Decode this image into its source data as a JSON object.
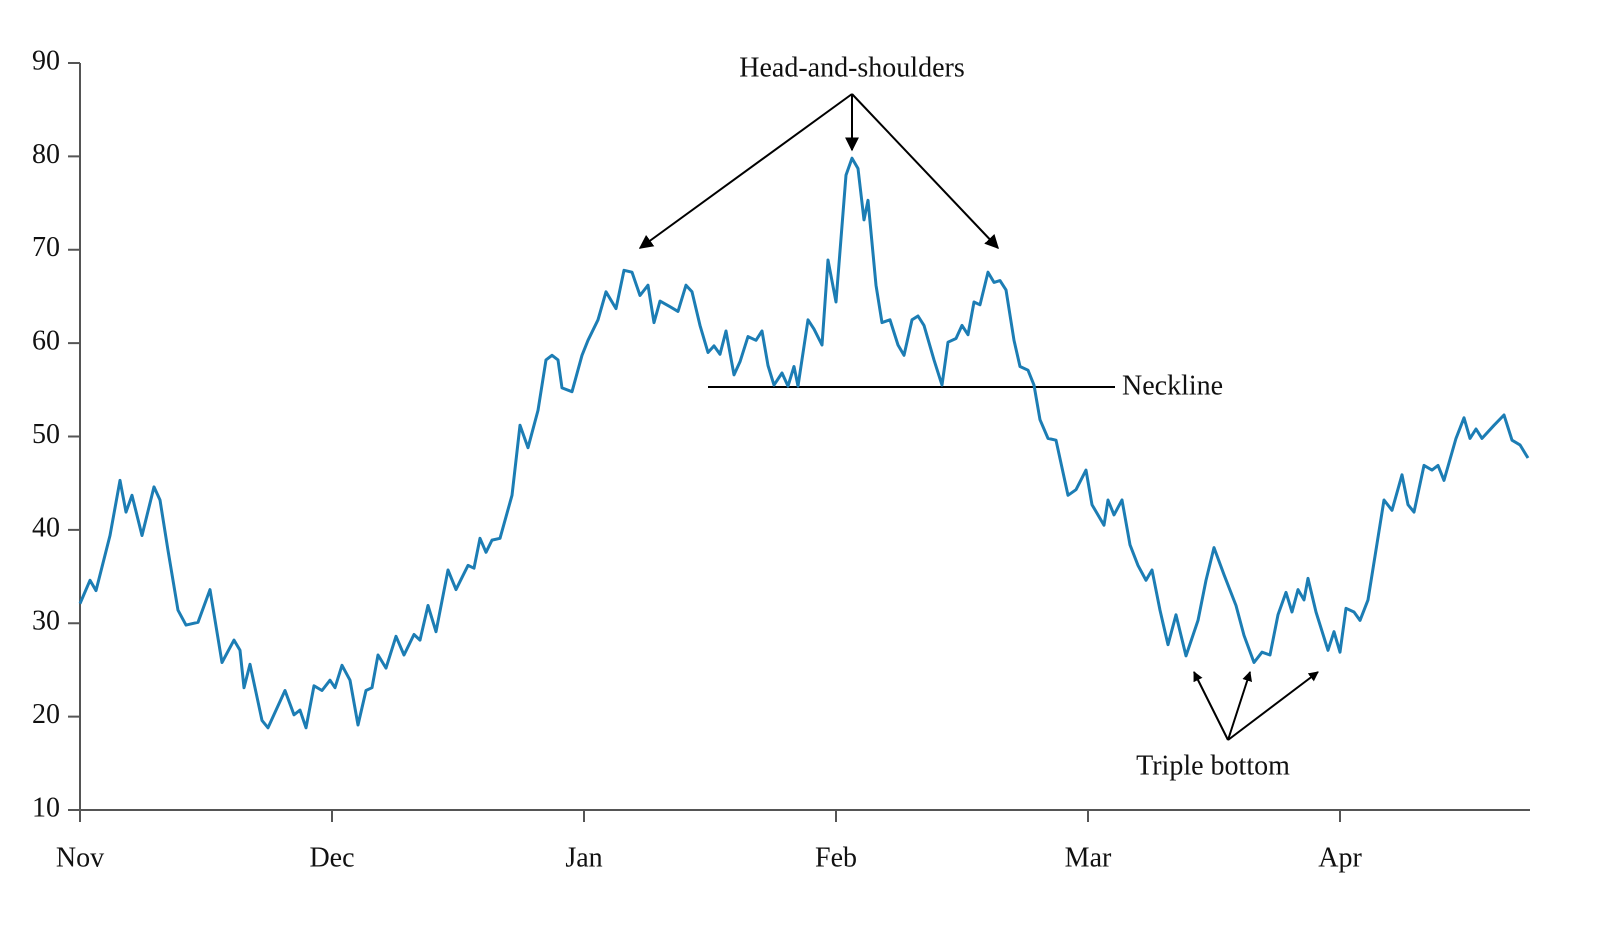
{
  "chart_data": {
    "type": "line",
    "x": [
      0,
      10,
      16,
      30,
      40,
      46,
      52,
      62,
      74,
      80,
      88,
      98,
      106,
      118,
      130,
      142,
      154,
      160,
      164,
      170,
      182,
      188,
      205,
      214,
      220,
      226,
      234,
      242,
      250,
      255,
      262,
      270,
      278,
      286,
      292,
      298,
      306,
      316,
      324,
      334,
      340,
      348,
      356,
      368,
      376,
      388,
      394,
      400,
      406,
      412,
      420,
      432,
      440,
      448,
      458,
      466,
      472,
      478,
      482,
      492,
      502,
      508,
      518,
      526,
      536,
      544,
      552,
      560,
      568,
      574,
      580,
      590,
      598,
      606,
      612,
      620,
      628,
      634,
      640,
      646,
      654,
      660,
      668,
      676,
      682,
      688,
      694,
      702,
      708,
      714,
      718,
      728,
      734,
      742,
      748,
      756,
      766,
      772,
      778,
      784,
      788,
      796,
      802,
      810,
      818,
      824,
      832,
      838,
      844,
      854,
      862,
      868,
      876,
      882,
      888,
      894,
      900,
      908,
      914,
      920,
      926,
      934,
      940,
      948,
      954,
      960,
      968,
      976,
      988,
      996,
      1006,
      1012,
      1024,
      1028,
      1034,
      1042,
      1050,
      1058,
      1066,
      1072,
      1080,
      1088,
      1096,
      1106,
      1118,
      1126,
      1134,
      1144,
      1156,
      1164,
      1174,
      1182,
      1190,
      1198,
      1206,
      1212,
      1218,
      1224,
      1228,
      1236,
      1248,
      1254,
      1260,
      1266,
      1274,
      1280,
      1288,
      1304,
      1312,
      1322,
      1328,
      1334,
      1344,
      1352,
      1358,
      1364,
      1376,
      1384,
      1390,
      1396,
      1402,
      1414,
      1424,
      1432,
      1440,
      1448
    ],
    "values": [
      32.1,
      34.6,
      33.5,
      39.4,
      45.3,
      41.9,
      43.7,
      39.4,
      44.6,
      43.2,
      37.8,
      31.4,
      29.8,
      30.1,
      33.6,
      25.8,
      28.2,
      27.1,
      23.1,
      25.6,
      19.6,
      18.8,
      22.8,
      20.2,
      20.7,
      18.8,
      23.3,
      22.8,
      23.9,
      23.1,
      25.5,
      23.9,
      19.1,
      22.8,
      23.1,
      26.6,
      25.2,
      28.6,
      26.6,
      28.8,
      28.2,
      31.9,
      29.1,
      35.7,
      33.6,
      36.2,
      35.9,
      39.1,
      37.6,
      38.9,
      39.1,
      43.7,
      51.2,
      48.8,
      52.8,
      58.2,
      58.7,
      58.2,
      55.2,
      54.8,
      58.7,
      60.3,
      62.5,
      65.5,
      63.7,
      67.8,
      67.6,
      65.1,
      66.2,
      62.2,
      64.5,
      63.9,
      63.4,
      66.2,
      65.5,
      61.9,
      59.0,
      59.7,
      58.8,
      61.3,
      56.6,
      58.0,
      60.7,
      60.3,
      61.3,
      57.6,
      55.5,
      56.8,
      55.4,
      57.5,
      55.4,
      62.5,
      61.5,
      59.8,
      68.9,
      64.4,
      78.0,
      79.8,
      78.7,
      73.2,
      75.3,
      66.2,
      62.2,
      62.5,
      59.8,
      58.7,
      62.5,
      62.9,
      61.9,
      58.2,
      55.5,
      60.1,
      60.5,
      61.9,
      60.9,
      64.4,
      64.1,
      67.6,
      66.5,
      66.7,
      65.7,
      60.3,
      57.5,
      57.1,
      55.5,
      51.8,
      49.8,
      49.6,
      43.7,
      44.3,
      46.4,
      42.7,
      40.5,
      43.2,
      41.6,
      43.2,
      38.4,
      36.2,
      34.6,
      35.7,
      31.4,
      27.7,
      30.9,
      26.5,
      30.3,
      34.6,
      38.1,
      35.2,
      31.9,
      28.7,
      25.8,
      26.9,
      26.6,
      30.9,
      33.3,
      31.2,
      33.6,
      32.5,
      34.8,
      31.2,
      27.1,
      29.1,
      26.9,
      31.6,
      31.2,
      30.3,
      32.5,
      43.2,
      42.1,
      45.9,
      42.7,
      41.9,
      46.9,
      46.4,
      46.9,
      45.3,
      49.8,
      52.0,
      49.8,
      50.8,
      49.8,
      51.2,
      52.3,
      49.6,
      49.1,
      47.7
    ],
    "color": "#1c7db4",
    "xlim": [
      0,
      1450
    ],
    "xticks": [
      {
        "value": 0,
        "label": "Nov"
      },
      {
        "value": 252,
        "label": "Dec"
      },
      {
        "value": 504,
        "label": "Jan"
      },
      {
        "value": 756,
        "label": "Feb"
      },
      {
        "value": 1008,
        "label": "Mar"
      },
      {
        "value": 1260,
        "label": "Apr"
      }
    ],
    "ylim": [
      10,
      90
    ],
    "yticks": [
      10,
      20,
      30,
      40,
      50,
      60,
      70,
      80,
      90
    ],
    "annotations": [
      "Head-and-shoulders",
      "Neckline",
      "Triple bottom"
    ]
  }
}
